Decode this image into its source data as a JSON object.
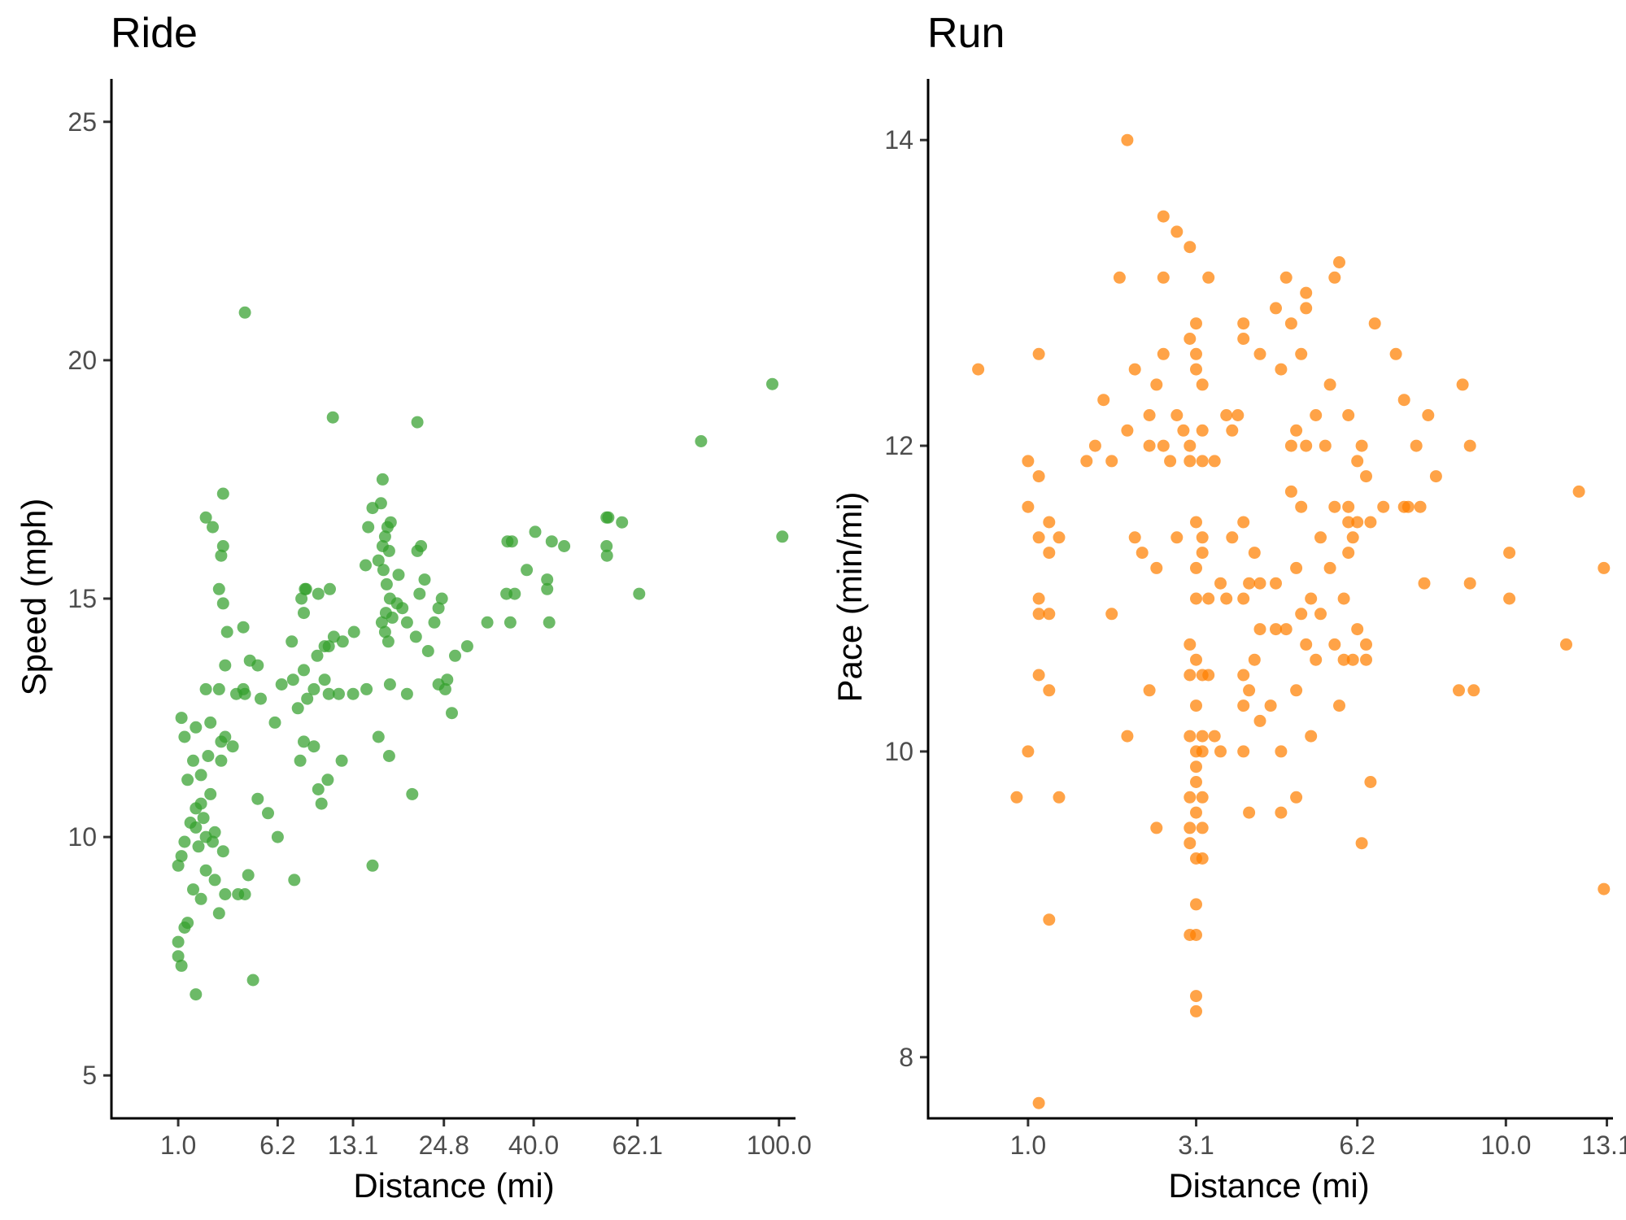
{
  "colors": {
    "ride": "#33a02c",
    "run": "#ff7f00"
  },
  "chart_data": [
    {
      "type": "scatter",
      "title": "Ride",
      "xlabel": "Distance (mi)",
      "ylabel": "Speed (mph)",
      "x_scale": "sqrt",
      "x_ticks": [
        1.0,
        6.2,
        13.1,
        24.8,
        40.0,
        62.1,
        100.0
      ],
      "x_tick_labels": [
        "1.0",
        "6.2",
        "13.1",
        "24.8",
        "40.0",
        "62.1",
        "100.0"
      ],
      "y_ticks": [
        5,
        10,
        15,
        20,
        25
      ],
      "y_tick_labels": [
        "5",
        "10",
        "15",
        "20",
        "25"
      ],
      "xlim": [
        0,
        105
      ],
      "ylim": [
        4.1,
        25.9
      ],
      "grid": false,
      "color": "#33a02c",
      "points": [
        [
          4.0,
          21.0
        ],
        [
          11.0,
          18.8
        ],
        [
          21.0,
          18.7
        ],
        [
          78.0,
          18.3
        ],
        [
          98.0,
          19.5
        ],
        [
          101.0,
          16.3
        ],
        [
          1.6,
          6.7
        ],
        [
          4.5,
          7.0
        ],
        [
          1.1,
          7.3
        ],
        [
          1.0,
          7.5
        ],
        [
          1.0,
          7.8
        ],
        [
          1.2,
          8.1
        ],
        [
          1.3,
          8.2
        ],
        [
          2.6,
          8.4
        ],
        [
          1.8,
          8.7
        ],
        [
          2.9,
          8.8
        ],
        [
          4.0,
          8.8
        ],
        [
          1.5,
          8.9
        ],
        [
          2.4,
          9.1
        ],
        [
          4.2,
          9.2
        ],
        [
          7.5,
          9.1
        ],
        [
          15.3,
          9.4
        ],
        [
          1.0,
          9.4
        ],
        [
          1.1,
          9.6
        ],
        [
          1.7,
          9.8
        ],
        [
          2.0,
          10.0
        ],
        [
          2.4,
          10.1
        ],
        [
          1.6,
          10.2
        ],
        [
          1.9,
          10.4
        ],
        [
          2.3,
          9.9
        ],
        [
          2.8,
          9.7
        ],
        [
          2.0,
          9.3
        ],
        [
          1.2,
          9.9
        ],
        [
          1.4,
          10.3
        ],
        [
          1.6,
          10.6
        ],
        [
          1.8,
          10.7
        ],
        [
          2.2,
          10.9
        ],
        [
          1.3,
          11.2
        ],
        [
          1.5,
          11.6
        ],
        [
          1.8,
          11.3
        ],
        [
          2.1,
          11.7
        ],
        [
          2.7,
          12.0
        ],
        [
          1.2,
          12.1
        ],
        [
          1.6,
          12.3
        ],
        [
          1.1,
          12.5
        ],
        [
          2.2,
          12.4
        ],
        [
          2.9,
          12.1
        ],
        [
          3.3,
          11.9
        ],
        [
          2.7,
          11.6
        ],
        [
          4.8,
          10.8
        ],
        [
          5.5,
          10.5
        ],
        [
          6.2,
          10.0
        ],
        [
          8.0,
          11.6
        ],
        [
          9.6,
          11.0
        ],
        [
          9.9,
          10.7
        ],
        [
          10.5,
          11.2
        ],
        [
          8.3,
          12.0
        ],
        [
          9.2,
          11.9
        ],
        [
          11.9,
          11.6
        ],
        [
          16.0,
          12.1
        ],
        [
          17.3,
          11.7
        ],
        [
          20.3,
          10.9
        ],
        [
          2.0,
          13.1
        ],
        [
          2.6,
          13.1
        ],
        [
          3.5,
          13.0
        ],
        [
          3.9,
          13.1
        ],
        [
          4.3,
          13.7
        ],
        [
          2.9,
          13.6
        ],
        [
          3.0,
          14.3
        ],
        [
          3.9,
          14.4
        ],
        [
          2.8,
          14.9
        ],
        [
          2.6,
          15.2
        ],
        [
          2.7,
          15.9
        ],
        [
          2.8,
          16.1
        ],
        [
          2.3,
          16.5
        ],
        [
          2.0,
          16.7
        ],
        [
          2.8,
          17.2
        ],
        [
          5.0,
          12.9
        ],
        [
          6.0,
          12.4
        ],
        [
          6.5,
          13.2
        ],
        [
          7.4,
          13.3
        ],
        [
          7.8,
          12.7
        ],
        [
          8.3,
          13.5
        ],
        [
          8.6,
          12.9
        ],
        [
          9.2,
          13.1
        ],
        [
          10.2,
          13.3
        ],
        [
          10.6,
          13.0
        ],
        [
          11.6,
          13.0
        ],
        [
          13.1,
          13.0
        ],
        [
          14.6,
          13.1
        ],
        [
          17.4,
          13.2
        ],
        [
          19.6,
          13.0
        ],
        [
          24.0,
          13.2
        ],
        [
          25.0,
          13.1
        ],
        [
          26.0,
          12.6
        ],
        [
          7.3,
          14.1
        ],
        [
          8.3,
          14.7
        ],
        [
          8.1,
          15.0
        ],
        [
          8.5,
          15.2
        ],
        [
          9.5,
          13.8
        ],
        [
          10.2,
          14.0
        ],
        [
          10.6,
          14.0
        ],
        [
          11.1,
          14.2
        ],
        [
          12.0,
          14.1
        ],
        [
          13.2,
          14.3
        ],
        [
          8.4,
          15.2
        ],
        [
          9.6,
          15.1
        ],
        [
          10.7,
          15.2
        ],
        [
          14.5,
          15.7
        ],
        [
          14.8,
          16.5
        ],
        [
          15.3,
          16.9
        ],
        [
          16.0,
          15.8
        ],
        [
          16.5,
          16.1
        ],
        [
          16.8,
          16.3
        ],
        [
          17.1,
          16.5
        ],
        [
          16.6,
          15.6
        ],
        [
          17.0,
          15.3
        ],
        [
          17.4,
          15.0
        ],
        [
          16.9,
          14.7
        ],
        [
          16.4,
          14.5
        ],
        [
          16.8,
          14.3
        ],
        [
          17.2,
          14.1
        ],
        [
          17.7,
          14.6
        ],
        [
          18.3,
          14.9
        ],
        [
          17.3,
          16.0
        ],
        [
          17.5,
          16.6
        ],
        [
          16.3,
          17.0
        ],
        [
          16.5,
          17.5
        ],
        [
          18.5,
          15.5
        ],
        [
          19.0,
          14.8
        ],
        [
          19.6,
          14.5
        ],
        [
          20.8,
          14.2
        ],
        [
          21.3,
          15.1
        ],
        [
          22.0,
          15.4
        ],
        [
          21.0,
          16.0
        ],
        [
          21.5,
          16.1
        ],
        [
          22.5,
          13.9
        ],
        [
          23.4,
          14.5
        ],
        [
          24.0,
          14.8
        ],
        [
          24.5,
          15.0
        ],
        [
          25.3,
          13.3
        ],
        [
          26.5,
          13.8
        ],
        [
          28.4,
          14.0
        ],
        [
          31.7,
          14.5
        ],
        [
          35.7,
          14.5
        ],
        [
          35.0,
          15.1
        ],
        [
          36.5,
          15.1
        ],
        [
          35.2,
          16.2
        ],
        [
          36.0,
          16.2
        ],
        [
          38.7,
          15.6
        ],
        [
          42.6,
          15.2
        ],
        [
          43.0,
          14.5
        ],
        [
          42.6,
          15.4
        ],
        [
          43.5,
          16.2
        ],
        [
          46.0,
          16.1
        ],
        [
          40.3,
          16.4
        ],
        [
          55.0,
          16.7
        ],
        [
          55.4,
          16.7
        ],
        [
          58.5,
          16.6
        ],
        [
          55.0,
          16.1
        ],
        [
          55.1,
          15.9
        ],
        [
          62.5,
          15.1
        ],
        [
          3.6,
          8.8
        ],
        [
          4.0,
          13.0
        ],
        [
          4.8,
          13.6
        ]
      ]
    },
    {
      "type": "scatter",
      "title": "Run",
      "xlabel": "Distance (mi)",
      "ylabel": "Pace (min/mi)",
      "x_scale": "sqrt",
      "x_ticks": [
        1.0,
        3.1,
        6.2,
        10.0,
        13.1
      ],
      "x_tick_labels": [
        "1.0",
        "3.1",
        "6.2",
        "10.0",
        "13.1"
      ],
      "y_ticks": [
        8,
        10,
        12,
        14
      ],
      "y_tick_labels": [
        "8",
        "10",
        "12",
        "14"
      ],
      "xlim": [
        0.3,
        13.3
      ],
      "ylim": [
        7.6,
        14.4
      ],
      "grid": false,
      "color": "#ff7f00",
      "points": [
        [
          1.1,
          7.7
        ],
        [
          2.1,
          14.0
        ],
        [
          2.6,
          13.5
        ],
        [
          2.8,
          13.4
        ],
        [
          3.0,
          13.3
        ],
        [
          2.0,
          13.1
        ],
        [
          2.6,
          13.1
        ],
        [
          3.3,
          13.1
        ],
        [
          4.7,
          13.1
        ],
        [
          5.1,
          13.0
        ],
        [
          5.1,
          12.9
        ],
        [
          4.5,
          12.9
        ],
        [
          4.8,
          12.8
        ],
        [
          5.8,
          13.2
        ],
        [
          5.7,
          13.1
        ],
        [
          6.6,
          12.8
        ],
        [
          7.1,
          12.6
        ],
        [
          0.6,
          12.5
        ],
        [
          1.1,
          12.6
        ],
        [
          2.2,
          12.5
        ],
        [
          2.5,
          12.4
        ],
        [
          2.6,
          12.6
        ],
        [
          3.0,
          12.7
        ],
        [
          3.1,
          12.6
        ],
        [
          3.1,
          12.5
        ],
        [
          3.2,
          12.4
        ],
        [
          3.1,
          12.8
        ],
        [
          3.9,
          12.8
        ],
        [
          3.9,
          12.7
        ],
        [
          4.2,
          12.6
        ],
        [
          4.6,
          12.5
        ],
        [
          5.0,
          12.6
        ],
        [
          5.6,
          12.4
        ],
        [
          8.8,
          12.4
        ],
        [
          1.8,
          12.3
        ],
        [
          1.6,
          11.9
        ],
        [
          1.7,
          12.0
        ],
        [
          1.9,
          11.9
        ],
        [
          2.1,
          12.1
        ],
        [
          2.4,
          12.2
        ],
        [
          2.4,
          12.0
        ],
        [
          2.6,
          12.0
        ],
        [
          2.7,
          11.9
        ],
        [
          2.8,
          12.2
        ],
        [
          2.9,
          12.1
        ],
        [
          3.0,
          12.0
        ],
        [
          3.2,
          12.1
        ],
        [
          3.0,
          11.9
        ],
        [
          3.2,
          11.9
        ],
        [
          3.4,
          11.9
        ],
        [
          3.6,
          12.2
        ],
        [
          3.8,
          12.2
        ],
        [
          3.7,
          12.1
        ],
        [
          4.9,
          12.1
        ],
        [
          4.8,
          12.0
        ],
        [
          5.1,
          12.0
        ],
        [
          5.3,
          12.2
        ],
        [
          5.5,
          12.0
        ],
        [
          6.0,
          12.2
        ],
        [
          6.3,
          12.0
        ],
        [
          6.2,
          11.9
        ],
        [
          6.4,
          11.8
        ],
        [
          7.3,
          12.3
        ],
        [
          7.6,
          12.0
        ],
        [
          7.9,
          12.2
        ],
        [
          9.0,
          12.0
        ],
        [
          1.0,
          11.9
        ],
        [
          1.1,
          11.8
        ],
        [
          1.0,
          11.6
        ],
        [
          1.1,
          11.4
        ],
        [
          1.3,
          11.4
        ],
        [
          1.2,
          11.3
        ],
        [
          1.2,
          11.5
        ],
        [
          2.2,
          11.4
        ],
        [
          2.3,
          11.3
        ],
        [
          2.5,
          11.2
        ],
        [
          2.8,
          11.4
        ],
        [
          3.1,
          11.5
        ],
        [
          3.2,
          11.4
        ],
        [
          3.2,
          11.3
        ],
        [
          3.1,
          11.2
        ],
        [
          3.1,
          11.0
        ],
        [
          3.3,
          11.0
        ],
        [
          3.5,
          11.1
        ],
        [
          3.6,
          11.0
        ],
        [
          3.9,
          11.0
        ],
        [
          3.9,
          11.5
        ],
        [
          3.7,
          11.4
        ],
        [
          4.1,
          11.3
        ],
        [
          4.2,
          11.1
        ],
        [
          4.0,
          11.1
        ],
        [
          4.5,
          11.1
        ],
        [
          4.8,
          11.7
        ],
        [
          5.0,
          11.6
        ],
        [
          4.9,
          11.2
        ],
        [
          5.4,
          11.4
        ],
        [
          5.6,
          11.2
        ],
        [
          5.2,
          11.0
        ],
        [
          5.7,
          11.6
        ],
        [
          6.0,
          11.6
        ],
        [
          6.0,
          11.5
        ],
        [
          6.2,
          11.5
        ],
        [
          6.1,
          11.4
        ],
        [
          6.5,
          11.5
        ],
        [
          6.8,
          11.6
        ],
        [
          6.0,
          11.3
        ],
        [
          5.9,
          11.0
        ],
        [
          7.3,
          11.6
        ],
        [
          7.4,
          11.6
        ],
        [
          7.7,
          11.6
        ],
        [
          8.1,
          11.8
        ],
        [
          7.8,
          11.1
        ],
        [
          9.0,
          11.1
        ],
        [
          10.1,
          11.3
        ],
        [
          10.1,
          11.0
        ],
        [
          12.2,
          11.7
        ],
        [
          13.0,
          11.2
        ],
        [
          1.1,
          11.0
        ],
        [
          1.2,
          10.9
        ],
        [
          1.1,
          10.9
        ],
        [
          1.9,
          10.9
        ],
        [
          3.0,
          10.7
        ],
        [
          3.1,
          10.6
        ],
        [
          3.2,
          10.5
        ],
        [
          3.0,
          10.5
        ],
        [
          3.1,
          10.3
        ],
        [
          3.3,
          10.5
        ],
        [
          3.9,
          10.3
        ],
        [
          3.9,
          10.5
        ],
        [
          4.0,
          10.4
        ],
        [
          4.1,
          10.6
        ],
        [
          4.2,
          10.2
        ],
        [
          4.4,
          10.3
        ],
        [
          4.2,
          10.8
        ],
        [
          4.5,
          10.8
        ],
        [
          4.7,
          10.8
        ],
        [
          5.0,
          10.9
        ],
        [
          5.4,
          10.9
        ],
        [
          5.1,
          10.7
        ],
        [
          5.3,
          10.6
        ],
        [
          5.7,
          10.7
        ],
        [
          5.9,
          10.6
        ],
        [
          6.1,
          10.6
        ],
        [
          6.4,
          10.6
        ],
        [
          6.2,
          10.8
        ],
        [
          6.4,
          10.7
        ],
        [
          11.8,
          10.7
        ],
        [
          8.7,
          10.4
        ],
        [
          9.1,
          10.4
        ],
        [
          4.9,
          10.4
        ],
        [
          5.8,
          10.3
        ],
        [
          2.4,
          10.4
        ],
        [
          1.1,
          10.5
        ],
        [
          1.2,
          10.4
        ],
        [
          1.0,
          10.0
        ],
        [
          2.1,
          10.1
        ],
        [
          3.0,
          10.1
        ],
        [
          3.1,
          10.0
        ],
        [
          3.2,
          10.0
        ],
        [
          3.2,
          10.1
        ],
        [
          3.4,
          10.1
        ],
        [
          3.5,
          10.0
        ],
        [
          3.9,
          10.0
        ],
        [
          4.6,
          10.0
        ],
        [
          5.2,
          10.1
        ],
        [
          3.1,
          9.9
        ],
        [
          3.1,
          9.8
        ],
        [
          3.0,
          9.7
        ],
        [
          3.2,
          9.7
        ],
        [
          3.1,
          9.6
        ],
        [
          4.0,
          9.6
        ],
        [
          4.6,
          9.6
        ],
        [
          4.9,
          9.7
        ],
        [
          6.5,
          9.8
        ],
        [
          0.9,
          9.7
        ],
        [
          1.3,
          9.7
        ],
        [
          2.5,
          9.5
        ],
        [
          3.0,
          9.5
        ],
        [
          3.2,
          9.5
        ],
        [
          3.0,
          9.4
        ],
        [
          3.1,
          9.3
        ],
        [
          3.2,
          9.3
        ],
        [
          6.3,
          9.4
        ],
        [
          13.0,
          9.1
        ],
        [
          3.1,
          9.0
        ],
        [
          1.2,
          8.9
        ],
        [
          3.0,
          8.8
        ],
        [
          3.1,
          8.8
        ],
        [
          3.1,
          8.4
        ],
        [
          3.1,
          8.3
        ]
      ]
    }
  ]
}
